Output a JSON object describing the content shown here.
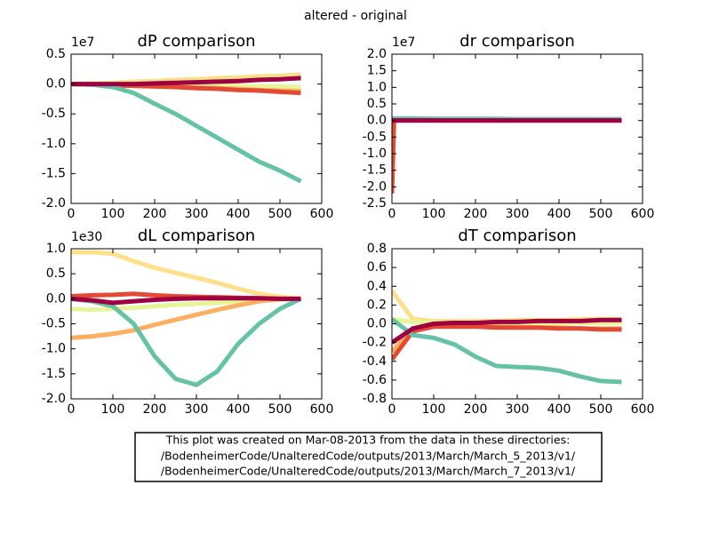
{
  "title": "altered - original",
  "chart_data": [
    {
      "type": "line",
      "title": "dP comparison",
      "offset_label": "1e7",
      "x": [
        0,
        50,
        100,
        150,
        200,
        250,
        300,
        350,
        400,
        450,
        500,
        550
      ],
      "xlim": [
        0,
        600
      ],
      "xticks": [
        0,
        100,
        200,
        300,
        400,
        500,
        600
      ],
      "ylim": [
        -2,
        0.5
      ],
      "yticks": [
        {
          "value": -2,
          "label": "-2.0"
        },
        -1.5,
        {
          "value": -1,
          "label": "-1.0"
        },
        -0.5,
        {
          "value": 0,
          "label": "0.0"
        },
        0.5
      ],
      "series": [
        {
          "color": "#fee08b",
          "values": [
            0,
            0.01,
            0.02,
            0.04,
            0.05,
            0.07,
            0.08,
            0.1,
            0.11,
            0.13,
            0.14,
            0.16
          ]
        },
        {
          "color": "#e6f598",
          "values": [
            0,
            0,
            0,
            -0.01,
            -0.01,
            -0.02,
            -0.02,
            -0.03,
            -0.03,
            -0.04,
            -0.04,
            -0.05
          ]
        },
        {
          "color": "#fdae61",
          "values": [
            0,
            -0.01,
            -0.02,
            -0.03,
            -0.04,
            -0.05,
            -0.06,
            -0.07,
            -0.08,
            -0.1,
            -0.11,
            -0.12
          ]
        },
        {
          "color": "#e34a33",
          "values": [
            0,
            -0.01,
            -0.02,
            -0.03,
            -0.04,
            -0.05,
            -0.07,
            -0.08,
            -0.1,
            -0.11,
            -0.13,
            -0.15
          ]
        },
        {
          "color": "#66c2a5",
          "values": [
            0,
            -0.01,
            -0.05,
            -0.15,
            -0.33,
            -0.5,
            -0.7,
            -0.9,
            -1.1,
            -1.3,
            -1.45,
            -1.63
          ]
        },
        {
          "color": "#9e0142",
          "values": [
            0,
            0,
            0,
            0,
            0.01,
            0.02,
            0.03,
            0.04,
            0.05,
            0.07,
            0.08,
            0.1
          ]
        }
      ]
    },
    {
      "type": "line",
      "title": "dr comparison",
      "offset_label": "1e7",
      "x": [
        0,
        5,
        50,
        100,
        150,
        200,
        250,
        300,
        350,
        400,
        450,
        500,
        550
      ],
      "xlim": [
        0,
        600
      ],
      "xticks": [
        0,
        100,
        200,
        300,
        400,
        500,
        600
      ],
      "ylim": [
        -2.5,
        2
      ],
      "yticks": [
        -2.5,
        {
          "value": -2,
          "label": "-2.0"
        },
        -1.5,
        {
          "value": -1,
          "label": "-1.0"
        },
        -0.5,
        {
          "value": 0,
          "label": "0.0"
        },
        0.5,
        {
          "value": 1,
          "label": "1.0"
        },
        1.5,
        {
          "value": 2,
          "label": "2.0"
        }
      ],
      "series": [
        {
          "color": "#66c2a5",
          "values": [
            0.06,
            0.06,
            0.06,
            0.05,
            0.05,
            0.05,
            0.05,
            0.04,
            0.04,
            0.04,
            0.04,
            0.04,
            0.04
          ]
        },
        {
          "color": "#e34a33",
          "values": [
            -2.2,
            0,
            0,
            0,
            0,
            0,
            0,
            0,
            0,
            0,
            0,
            0,
            0
          ]
        },
        {
          "color": "#9e0142",
          "values": [
            0,
            0,
            0,
            0,
            0,
            0,
            0,
            0,
            0,
            0,
            0,
            0,
            0
          ]
        }
      ]
    },
    {
      "type": "line",
      "title": "dL comparison",
      "offset_label": "1e30",
      "x": [
        0,
        50,
        100,
        150,
        200,
        250,
        300,
        350,
        400,
        450,
        500,
        550
      ],
      "xlim": [
        0,
        600
      ],
      "xticks": [
        0,
        100,
        200,
        300,
        400,
        500,
        600
      ],
      "ylim": [
        -2,
        1
      ],
      "yticks": [
        {
          "value": -2,
          "label": "-2.0"
        },
        -1.5,
        {
          "value": -1,
          "label": "-1.0"
        },
        -0.5,
        {
          "value": 0,
          "label": "0.0"
        },
        0.5,
        {
          "value": 1,
          "label": "1.0"
        }
      ],
      "series": [
        {
          "color": "#fee08b",
          "values": [
            0.93,
            0.93,
            0.9,
            0.75,
            0.62,
            0.52,
            0.42,
            0.32,
            0.2,
            0.1,
            0.04,
            0
          ]
        },
        {
          "color": "#e6f598",
          "values": [
            -0.2,
            -0.22,
            -0.2,
            -0.18,
            -0.15,
            -0.12,
            -0.1,
            -0.08,
            -0.06,
            -0.04,
            -0.02,
            0
          ]
        },
        {
          "color": "#fdae61",
          "values": [
            -0.78,
            -0.75,
            -0.7,
            -0.63,
            -0.52,
            -0.42,
            -0.32,
            -0.22,
            -0.13,
            -0.05,
            0,
            0
          ]
        },
        {
          "color": "#e34a33",
          "values": [
            0.05,
            0.07,
            0.08,
            0.1,
            0.07,
            0.05,
            0.04,
            0.03,
            0.02,
            0.01,
            0,
            0
          ]
        },
        {
          "color": "#66c2a5",
          "values": [
            0,
            -0.05,
            -0.15,
            -0.5,
            -1.15,
            -1.6,
            -1.72,
            -1.45,
            -0.9,
            -0.5,
            -0.2,
            0
          ]
        },
        {
          "color": "#9e0142",
          "values": [
            0,
            -0.03,
            -0.08,
            -0.05,
            -0.02,
            0,
            0.01,
            0.01,
            0.01,
            0.01,
            0,
            0
          ]
        }
      ]
    },
    {
      "type": "line",
      "title": "dT comparison",
      "x": [
        0,
        50,
        100,
        150,
        200,
        250,
        300,
        350,
        400,
        450,
        500,
        550
      ],
      "xlim": [
        0,
        600
      ],
      "xticks": [
        0,
        100,
        200,
        300,
        400,
        500,
        600
      ],
      "ylim": [
        -0.8,
        0.8
      ],
      "yticks": [
        -0.8,
        -0.6,
        -0.4,
        -0.2,
        {
          "value": 0,
          "label": "0.0"
        },
        0.2,
        0.4,
        0.6,
        0.8
      ],
      "series": [
        {
          "color": "#fee08b",
          "values": [
            0.35,
            0.05,
            0.03,
            0.03,
            0.03,
            0.03,
            0.04,
            0.04,
            0.04,
            0.05,
            0.05,
            0.05
          ]
        },
        {
          "color": "#e6f598",
          "values": [
            0.05,
            0.02,
            0.01,
            0.01,
            0.01,
            0.01,
            0.01,
            0.01,
            0.01,
            0.01,
            0.01,
            0.01
          ]
        },
        {
          "color": "#fdae61",
          "values": [
            -0.3,
            -0.05,
            -0.03,
            -0.03,
            -0.03,
            -0.03,
            -0.04,
            -0.04,
            -0.04,
            -0.05,
            -0.05,
            -0.05
          ]
        },
        {
          "color": "#e34a33",
          "values": [
            -0.38,
            -0.08,
            -0.03,
            -0.03,
            -0.03,
            -0.04,
            -0.04,
            -0.04,
            -0.05,
            -0.05,
            -0.06,
            -0.06
          ]
        },
        {
          "color": "#66c2a5",
          "values": [
            0.05,
            -0.12,
            -0.15,
            -0.22,
            -0.35,
            -0.45,
            -0.46,
            -0.47,
            -0.5,
            -0.56,
            -0.61,
            -0.62
          ]
        },
        {
          "color": "#9e0142",
          "values": [
            -0.2,
            -0.05,
            0,
            0.01,
            0.01,
            0.02,
            0.02,
            0.03,
            0.03,
            0.03,
            0.04,
            0.04
          ]
        }
      ]
    }
  ],
  "note": [
    "This plot was created on Mar-08-2013 from the data in these directories:",
    "/BodenheimerCode/UnalteredCode/outputs/2013/March/March_5_2013/v1/",
    "/BodenheimerCode/UnalteredCode/outputs/2013/March/March_7_2013/v1/"
  ]
}
